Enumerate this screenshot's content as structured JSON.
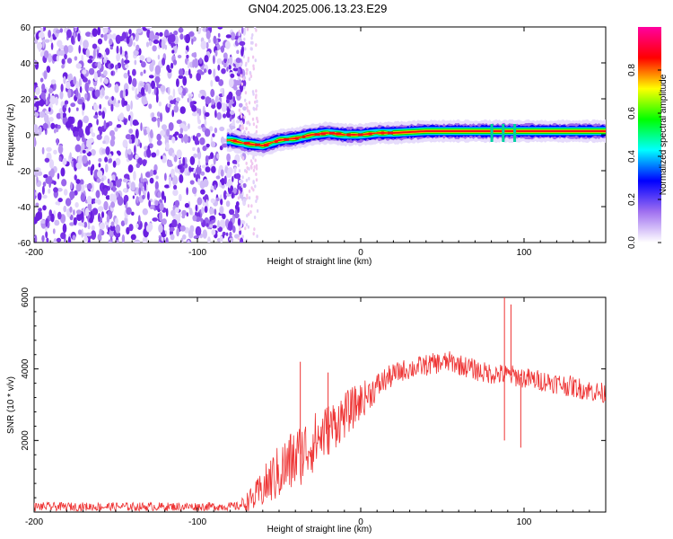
{
  "title": "GN04.2025.006.13.23.E29",
  "chart_data": [
    {
      "type": "heatmap",
      "xlabel": "Height of straight line (km)",
      "ylabel": "Frequency (Hz)",
      "xlim": [
        -200,
        150
      ],
      "ylim": [
        -60,
        60
      ],
      "x_ticks": [
        -200,
        -100,
        0,
        100
      ],
      "y_ticks": [
        -60,
        -40,
        -20,
        0,
        20,
        40,
        60
      ],
      "colorbar": {
        "label": "Normalized spectral amplitude",
        "range": [
          0.0,
          1.0
        ],
        "ticks": [
          0.0,
          0.2,
          0.4,
          0.6,
          0.8
        ],
        "colormap": [
          "#ffffff",
          "#a070f0",
          "#0000ff",
          "#00ffff",
          "#00ff00",
          "#ffff00",
          "#ff0000",
          "#ff00a0"
        ]
      },
      "noise_region_x": [
        -200,
        -75
      ],
      "ridge": {
        "description_points_x": [
          -80,
          -70,
          -60,
          -50,
          -40,
          -30,
          -20,
          -10,
          0,
          10,
          20,
          40,
          60,
          80,
          100,
          120,
          150
        ],
        "frequency_hz": [
          -3,
          -5,
          -6,
          -3,
          -2,
          0,
          1,
          0,
          0,
          1,
          1,
          2,
          2,
          2,
          2,
          2,
          2
        ]
      }
    },
    {
      "type": "line",
      "xlabel": "Height of straight line (km)",
      "ylabel": "SNR (10 * v/v)",
      "xlim": [
        -200,
        150
      ],
      "ylim": [
        0,
        6000
      ],
      "x_ticks": [
        -200,
        -100,
        0,
        100
      ],
      "y_ticks": [
        2000,
        4000,
        6000
      ],
      "color": "#ee3333",
      "envelope": {
        "x": [
          -200,
          -150,
          -100,
          -75,
          -65,
          -55,
          -45,
          -35,
          -25,
          -15,
          -5,
          5,
          15,
          25,
          35,
          45,
          55,
          65,
          75,
          85,
          95,
          105,
          115,
          125,
          135,
          150
        ],
        "base": [
          150,
          150,
          150,
          160,
          400,
          900,
          1300,
          1700,
          2100,
          2500,
          2900,
          3300,
          3700,
          3950,
          4050,
          4150,
          4200,
          4050,
          3900,
          3850,
          3800,
          3700,
          3650,
          3550,
          3450,
          3300
        ],
        "noise": [
          120,
          120,
          120,
          120,
          400,
          700,
          900,
          900,
          800,
          700,
          600,
          450,
          350,
          300,
          300,
          300,
          300,
          300,
          300,
          300,
          300,
          300,
          300,
          300,
          300,
          300
        ]
      },
      "spikes": [
        {
          "x": -37,
          "y": 4200
        },
        {
          "x": -20,
          "y": 3900
        },
        {
          "x": 88,
          "y": 6000
        },
        {
          "x": 92,
          "y": 5800
        },
        {
          "x": 88,
          "y": 2000
        },
        {
          "x": 98,
          "y": 1800
        }
      ]
    }
  ]
}
